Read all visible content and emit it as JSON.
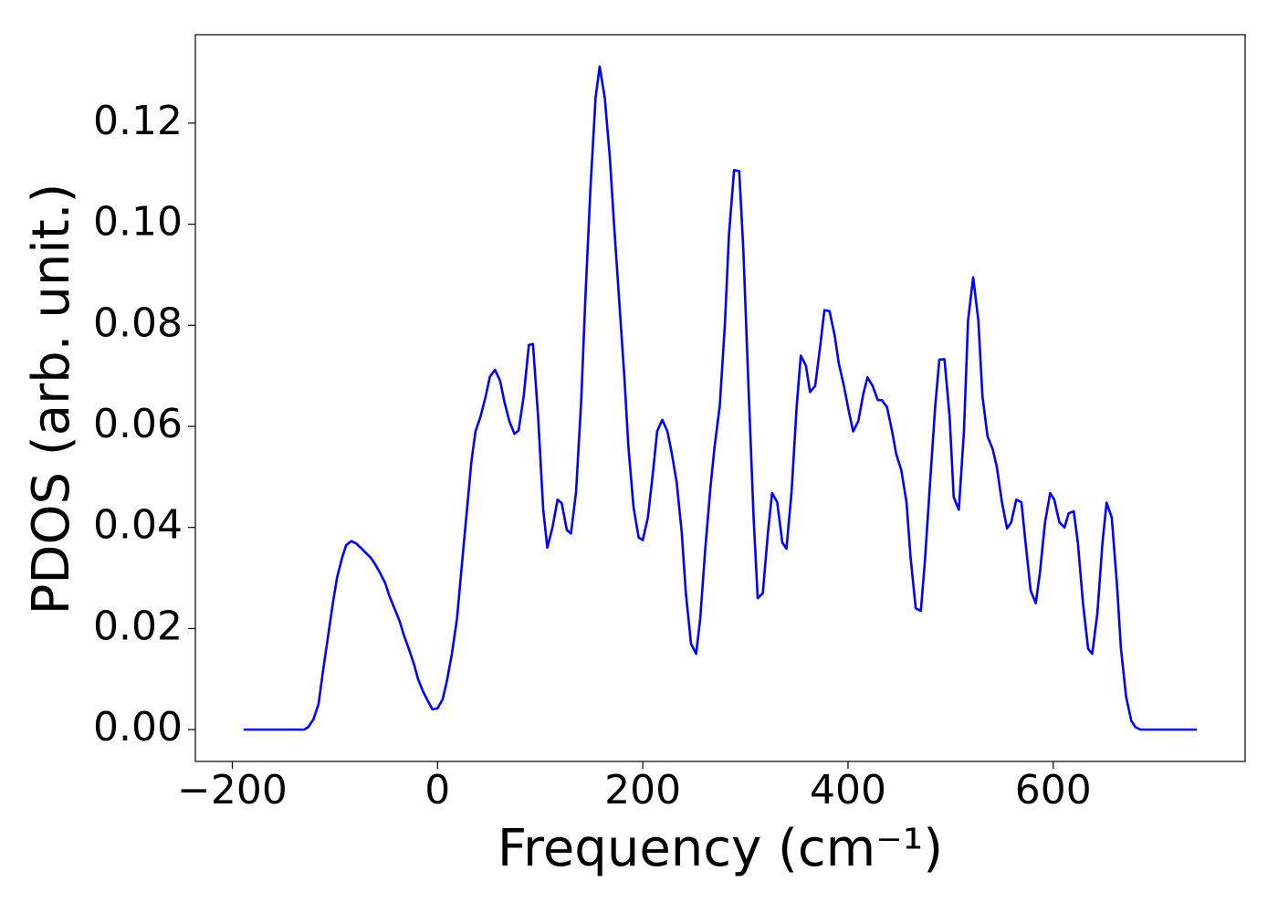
{
  "chart_data": {
    "type": "line",
    "xlabel": "Frequency (cm⁻¹)",
    "ylabel": "PDOS (arb. unit.)",
    "color": "#0000ff",
    "xlim": [
      -236,
      787
    ],
    "ylim": [
      -0.0063,
      0.1375
    ],
    "xticks": [
      {
        "value": -200,
        "label": "−200"
      },
      0,
      200,
      400,
      600
    ],
    "yticks": [
      {
        "value": 0,
        "label": "0.00"
      },
      0.02,
      0.04,
      0.06,
      0.08,
      {
        "value": 0.1,
        "label": "0.10"
      },
      0.12
    ],
    "x": [
      -189,
      -130,
      -126,
      -121,
      -116,
      -112,
      -107,
      -102,
      -98,
      -93,
      -89,
      -84,
      -79,
      -75,
      -70,
      -65,
      -61,
      -56,
      -51,
      -47,
      -42,
      -37,
      -33,
      -28,
      -23,
      -19,
      -14,
      -9,
      -5,
      0,
      5,
      9,
      14,
      19,
      23,
      28,
      33,
      37,
      42,
      47,
      51,
      56,
      61,
      65,
      70,
      75,
      79,
      84,
      89,
      93,
      98,
      103,
      107,
      112,
      117,
      121,
      126,
      130,
      135,
      140,
      144,
      149,
      154,
      158,
      163,
      168,
      172,
      177,
      182,
      186,
      191,
      196,
      200,
      205,
      210,
      214,
      219,
      224,
      228,
      233,
      238,
      242,
      247,
      252,
      256,
      261,
      266,
      270,
      275,
      280,
      284,
      289,
      294,
      298,
      303,
      308,
      312,
      317,
      322,
      326,
      331,
      336,
      340,
      345,
      350,
      354,
      359,
      363,
      368,
      373,
      377,
      382,
      387,
      391,
      396,
      401,
      405,
      410,
      415,
      419,
      424,
      429,
      433,
      438,
      443,
      447,
      452,
      457,
      461,
      466,
      471,
      475,
      480,
      485,
      489,
      494,
      499,
      503,
      508,
      513,
      517,
      522,
      527,
      531,
      536,
      541,
      545,
      550,
      555,
      559,
      564,
      569,
      573,
      578,
      583,
      587,
      592,
      597,
      601,
      606,
      611,
      615,
      620,
      624,
      629,
      634,
      638,
      643,
      648,
      652,
      657,
      662,
      666,
      671,
      676,
      680,
      685,
      740
    ],
    "values": [
      0,
      0,
      0.0005,
      0.002,
      0.005,
      0.011,
      0.018,
      0.025,
      0.03,
      0.034,
      0.0365,
      0.0373,
      0.0368,
      0.036,
      0.035,
      0.034,
      0.0328,
      0.031,
      0.029,
      0.0265,
      0.024,
      0.0215,
      0.0188,
      0.016,
      0.013,
      0.01,
      0.0075,
      0.0055,
      0.004,
      0.0042,
      0.006,
      0.0095,
      0.015,
      0.022,
      0.031,
      0.042,
      0.053,
      0.059,
      0.062,
      0.066,
      0.0698,
      0.0712,
      0.069,
      0.065,
      0.061,
      0.0585,
      0.0592,
      0.066,
      0.0761,
      0.0763,
      0.062,
      0.0435,
      0.036,
      0.04,
      0.0455,
      0.0448,
      0.0395,
      0.0388,
      0.047,
      0.065,
      0.085,
      0.107,
      0.125,
      0.1312,
      0.125,
      0.113,
      0.1,
      0.085,
      0.07,
      0.056,
      0.044,
      0.038,
      0.0375,
      0.042,
      0.051,
      0.059,
      0.0613,
      0.059,
      0.055,
      0.049,
      0.039,
      0.027,
      0.017,
      0.015,
      0.022,
      0.036,
      0.048,
      0.056,
      0.064,
      0.08,
      0.098,
      0.1107,
      0.1105,
      0.095,
      0.068,
      0.042,
      0.026,
      0.027,
      0.039,
      0.0468,
      0.045,
      0.037,
      0.0358,
      0.047,
      0.064,
      0.074,
      0.072,
      0.0668,
      0.068,
      0.076,
      0.083,
      0.0828,
      0.078,
      0.0725,
      0.068,
      0.0628,
      0.059,
      0.061,
      0.0665,
      0.0697,
      0.068,
      0.0652,
      0.0652,
      0.0638,
      0.059,
      0.0545,
      0.0513,
      0.045,
      0.034,
      0.024,
      0.0235,
      0.0335,
      0.049,
      0.064,
      0.0732,
      0.0733,
      0.062,
      0.046,
      0.0435,
      0.059,
      0.081,
      0.0895,
      0.081,
      0.066,
      0.058,
      0.0555,
      0.052,
      0.045,
      0.0398,
      0.041,
      0.0455,
      0.045,
      0.037,
      0.0275,
      0.025,
      0.031,
      0.041,
      0.0468,
      0.0455,
      0.041,
      0.04,
      0.0428,
      0.0432,
      0.037,
      0.025,
      0.016,
      0.015,
      0.023,
      0.037,
      0.0449,
      0.042,
      0.029,
      0.016,
      0.0065,
      0.0018,
      0.0005,
      0,
      0
    ]
  }
}
